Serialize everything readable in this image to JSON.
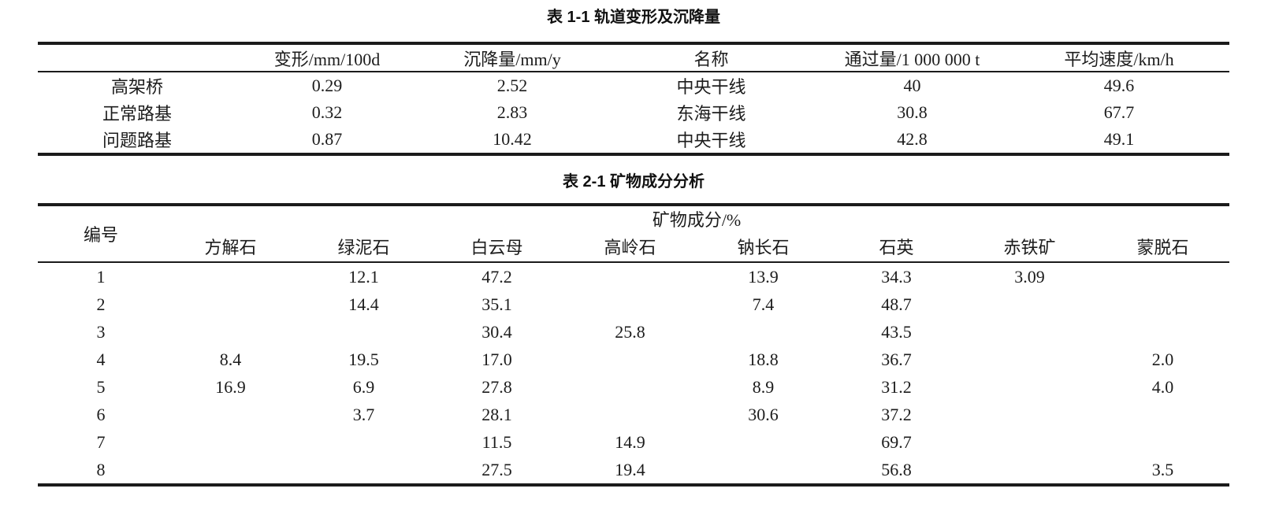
{
  "colors": {
    "background": "#ffffff",
    "rule": "#1b1b1b",
    "text": "#1c1c1c"
  },
  "table1": {
    "title": "表 1-1 轨道变形及沉降量",
    "columns": [
      "",
      "变形/mm/100d",
      "沉降量/mm/y",
      "名称",
      "通过量/1 000 000 t",
      "平均速度/km/h"
    ],
    "rows": [
      [
        "高架桥",
        "0.29",
        "2.52",
        "中央干线",
        "40",
        "49.6"
      ],
      [
        "正常路基",
        "0.32",
        "2.83",
        "东海干线",
        "30.8",
        "67.7"
      ],
      [
        "问题路基",
        "0.87",
        "10.42",
        "中央干线",
        "42.8",
        "49.1"
      ]
    ]
  },
  "table2": {
    "title": "表 2-1 矿物成分分析",
    "id_header": "编号",
    "group_header": "矿物成分/%",
    "mineral_columns": [
      "方解石",
      "绿泥石",
      "白云母",
      "高岭石",
      "钠长石",
      "石英",
      "赤铁矿",
      "蒙脱石"
    ],
    "rows": [
      [
        "1",
        "",
        "12.1",
        "47.2",
        "",
        "13.9",
        "34.3",
        "3.09",
        ""
      ],
      [
        "2",
        "",
        "14.4",
        "35.1",
        "",
        "7.4",
        "48.7",
        "",
        ""
      ],
      [
        "3",
        "",
        "",
        "30.4",
        "25.8",
        "",
        "43.5",
        "",
        ""
      ],
      [
        "4",
        "8.4",
        "19.5",
        "17.0",
        "",
        "18.8",
        "36.7",
        "",
        "2.0"
      ],
      [
        "5",
        "16.9",
        "6.9",
        "27.8",
        "",
        "8.9",
        "31.2",
        "",
        "4.0"
      ],
      [
        "6",
        "",
        "3.7",
        "28.1",
        "",
        "30.6",
        "37.2",
        "",
        ""
      ],
      [
        "7",
        "",
        "",
        "11.5",
        "14.9",
        "",
        "69.7",
        "",
        ""
      ],
      [
        "8",
        "",
        "",
        "27.5",
        "19.4",
        "",
        "56.8",
        "",
        "3.5"
      ]
    ]
  }
}
